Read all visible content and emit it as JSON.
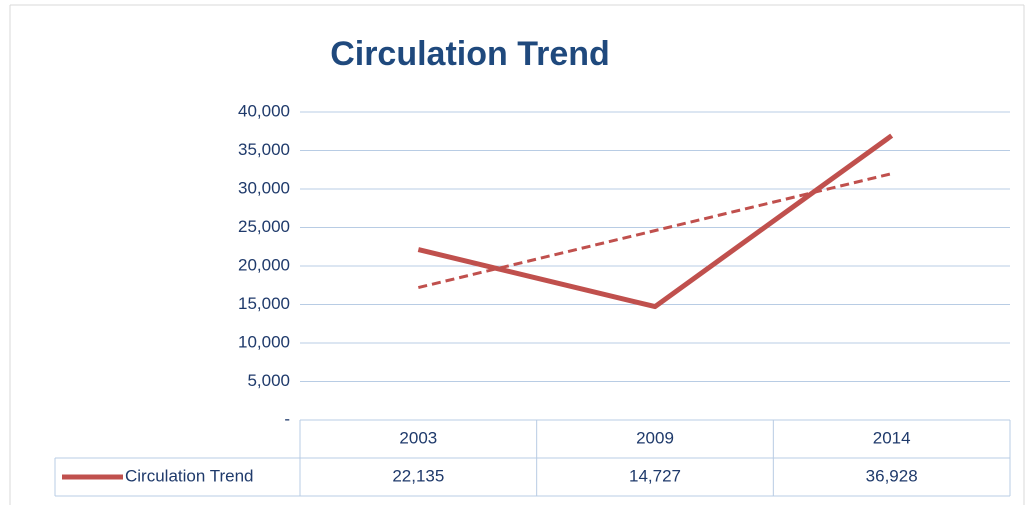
{
  "chart_data": {
    "type": "line",
    "title": "Circulation Trend",
    "categories": [
      "2003",
      "2009",
      "2014"
    ],
    "series": [
      {
        "name": "Circulation Trend",
        "color": "#c0504d",
        "values": [
          22135,
          14727,
          36928
        ],
        "value_labels": [
          "22,135",
          "14,727",
          "36,928"
        ]
      }
    ],
    "trendline": "linear",
    "ylim": [
      0,
      40000
    ],
    "yticks": [
      {
        "value": 0,
        "label": "-"
      },
      {
        "value": 5000,
        "label": "5,000"
      },
      {
        "value": 10000,
        "label": "10,000"
      },
      {
        "value": 15000,
        "label": "15,000"
      },
      {
        "value": 20000,
        "label": "20,000"
      },
      {
        "value": 25000,
        "label": "25,000"
      },
      {
        "value": 30000,
        "label": "30,000"
      },
      {
        "value": 35000,
        "label": "35,000"
      },
      {
        "value": 40000,
        "label": "40,000"
      }
    ],
    "grid": true,
    "data_table": true
  }
}
